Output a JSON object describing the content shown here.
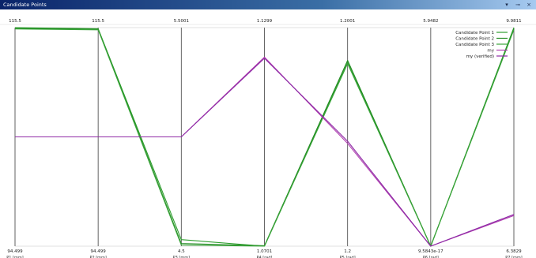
{
  "window": {
    "title": "Candidate Points",
    "controls": [
      {
        "name": "dropdown-icon",
        "glyph": "▾"
      },
      {
        "name": "pin-icon",
        "glyph": "⊸"
      },
      {
        "name": "close-icon",
        "glyph": "×"
      }
    ]
  },
  "chart_data": {
    "type": "parallel-coordinates",
    "grid": true,
    "legend_position": "top-right",
    "axes": [
      {
        "top": "115.5",
        "bottom": "94.499",
        "label": "P1 [mm]"
      },
      {
        "top": "115.5",
        "bottom": "94.499",
        "label": "P2 [mm]"
      },
      {
        "top": "5.5001",
        "bottom": "4.5",
        "label": "P3 [mm]"
      },
      {
        "top": "1.1299",
        "bottom": "1.0701",
        "label": "P4 [rad]"
      },
      {
        "top": "1.2001",
        "bottom": "1.2",
        "label": "P5 [rad]"
      },
      {
        "top": "5.9482",
        "bottom": "9.5843e-17",
        "label": "P6 [rad]"
      },
      {
        "top": "9.9811",
        "bottom": "6.3829",
        "label": "P7 [mm]"
      }
    ],
    "series": [
      {
        "name": "Candidate Point 1",
        "color": "#2e9e2e",
        "values": [
          1.0,
          0.995,
          0.03,
          0.0,
          0.84,
          0.0,
          1.0
        ]
      },
      {
        "name": "Candidate Point 2",
        "color": "#1f8a1f",
        "values": [
          0.997,
          0.993,
          0.012,
          0.002,
          0.85,
          0.0,
          0.995
        ]
      },
      {
        "name": "Candidate Point 3",
        "color": "#3aa53a",
        "values": [
          0.994,
          0.99,
          0.005,
          0.0,
          0.835,
          0.0,
          0.99
        ]
      },
      {
        "name": "my",
        "color": "#b03fb0",
        "values": [
          0.5,
          0.5,
          0.5,
          0.865,
          0.47,
          0.0,
          0.14
        ]
      },
      {
        "name": "my (verified)",
        "color": "#8e2aa6",
        "values": [
          0.5,
          0.5,
          0.5,
          0.86,
          0.48,
          0.0,
          0.145
        ]
      }
    ]
  }
}
